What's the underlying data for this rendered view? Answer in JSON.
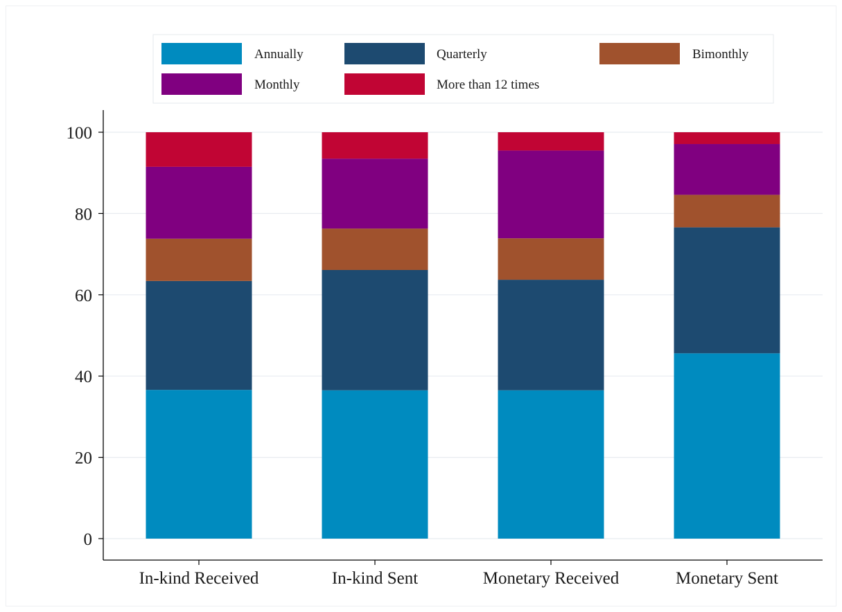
{
  "chart_data": {
    "type": "bar",
    "stacked": true,
    "categories": [
      "In-kind Received",
      "In-kind Sent",
      "Monetary Received",
      "Monetary Sent"
    ],
    "series": [
      {
        "name": "Annually",
        "color": "#008bbf",
        "values": [
          36.6,
          36.5,
          36.5,
          45.6
        ]
      },
      {
        "name": "Quarterly",
        "color": "#1d4a70",
        "values": [
          26.8,
          29.6,
          27.2,
          31.0
        ]
      },
      {
        "name": "Bimonthly",
        "color": "#a0522d",
        "values": [
          10.4,
          10.2,
          10.2,
          8.0
        ]
      },
      {
        "name": "Monthly",
        "color": "#800080",
        "values": [
          17.7,
          17.2,
          21.6,
          12.5
        ]
      },
      {
        "name": "More than 12 times",
        "color": "#c10534",
        "values": [
          8.5,
          6.5,
          4.5,
          2.9
        ]
      }
    ],
    "yticks": [
      "0",
      "20",
      "40",
      "60",
      "80",
      "100"
    ],
    "ylim": [
      0,
      100
    ],
    "grid": true,
    "legend_position": "top"
  }
}
